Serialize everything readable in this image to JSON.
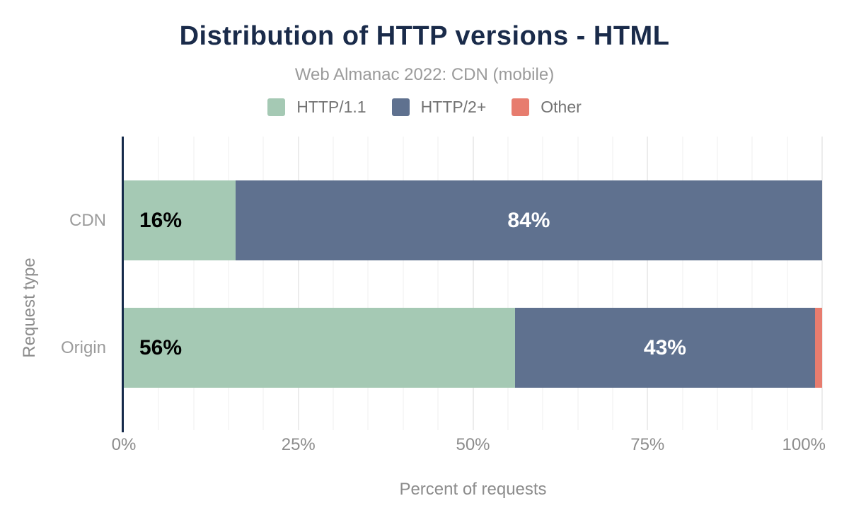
{
  "header": {
    "title": "Distribution of HTTP versions - HTML",
    "subtitle": "Web Almanac 2022: CDN (mobile)"
  },
  "colors": {
    "title_navy": "#1a2b4a",
    "axis_line": "#152a4a",
    "http11_green": "#a5c9b4",
    "http2_blue": "#5f718f",
    "other_salmon": "#e77c6e",
    "muted_text": "#8c8c8c"
  },
  "chart_data": {
    "type": "bar",
    "orientation": "horizontal",
    "stacked": true,
    "title": "Distribution of HTTP versions - HTML",
    "subtitle": "Web Almanac 2022: CDN (mobile)",
    "categories": [
      "CDN",
      "Origin"
    ],
    "series": [
      {
        "name": "HTTP/1.1",
        "color": "#a5c9b4",
        "values": [
          16,
          56
        ],
        "labels": [
          "16%",
          "56%"
        ],
        "label_color": "#000000",
        "label_align": "start"
      },
      {
        "name": "HTTP/2+",
        "color": "#5f718f",
        "values": [
          84,
          43
        ],
        "labels": [
          "84%",
          "43%"
        ],
        "label_color": "#ffffff",
        "label_align": "center"
      },
      {
        "name": "Other",
        "color": "#e77c6e",
        "values": [
          0,
          1
        ],
        "labels": [
          "",
          ""
        ],
        "label_color": "#ffffff",
        "label_align": "center"
      }
    ],
    "xlabel": "Percent of requests",
    "ylabel": "Request type",
    "xlim": [
      0,
      100
    ],
    "xticks": [
      {
        "value": 0,
        "label": "0%"
      },
      {
        "value": 25,
        "label": "25%"
      },
      {
        "value": 50,
        "label": "50%"
      },
      {
        "value": 75,
        "label": "75%"
      },
      {
        "value": 100,
        "label": "100%"
      }
    ],
    "grid": {
      "minor_step_pct": 5,
      "major_step_pct": 25,
      "axis": "x"
    },
    "legend_position": "top"
  },
  "legend": [
    {
      "label": "HTTP/1.1",
      "color": "#a5c9b4"
    },
    {
      "label": "HTTP/2+",
      "color": "#5f718f"
    },
    {
      "label": "Other",
      "color": "#e77c6e"
    }
  ]
}
